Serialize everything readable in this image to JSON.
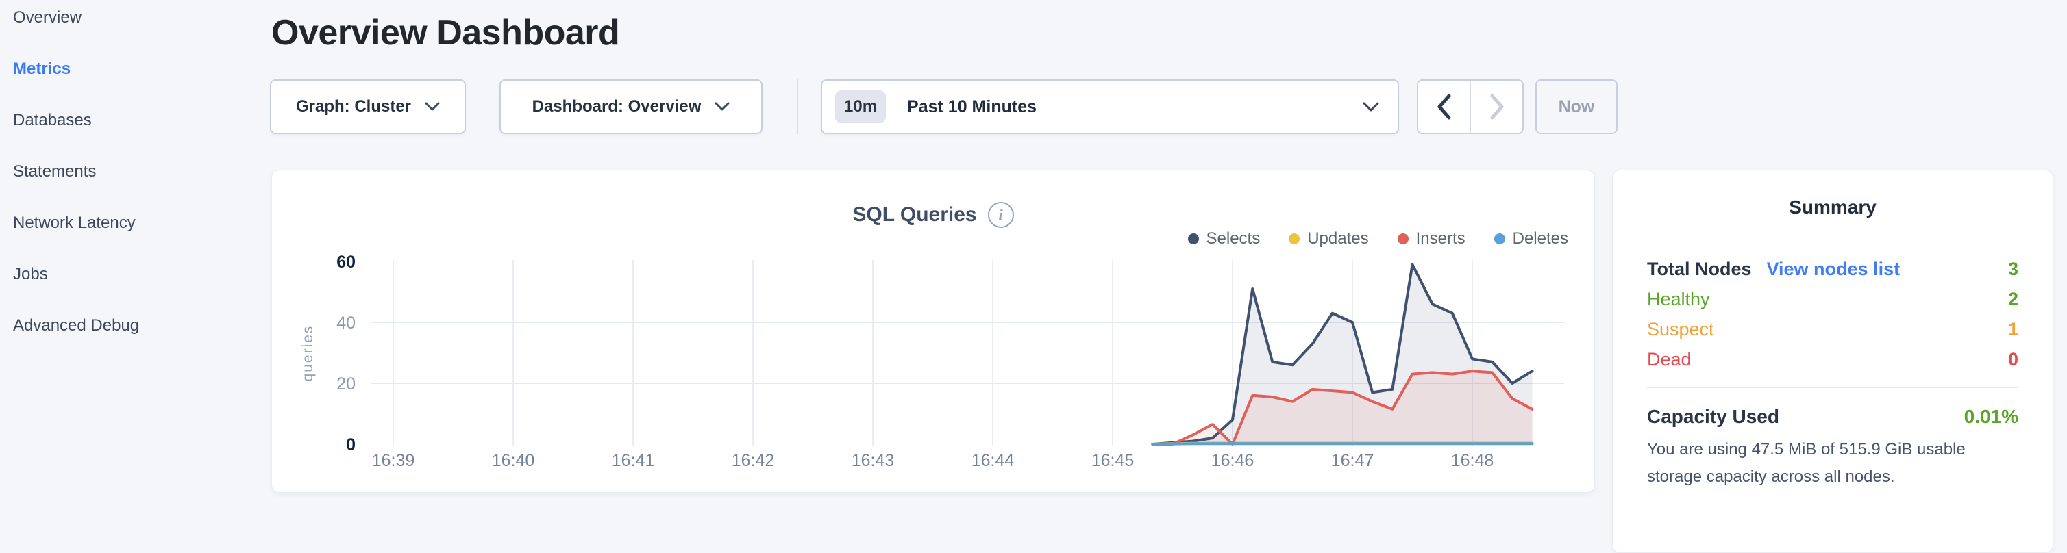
{
  "sidebar": {
    "items": [
      {
        "label": "Overview",
        "active": false
      },
      {
        "label": "Metrics",
        "active": true
      },
      {
        "label": "Databases",
        "active": false
      },
      {
        "label": "Statements",
        "active": false
      },
      {
        "label": "Network Latency",
        "active": false
      },
      {
        "label": "Jobs",
        "active": false
      },
      {
        "label": "Advanced Debug",
        "active": false
      }
    ]
  },
  "page": {
    "title": "Overview Dashboard"
  },
  "toolbar": {
    "graph_selector": {
      "label": "Graph: Cluster"
    },
    "dashboard_selector": {
      "label": "Dashboard: Overview"
    },
    "time_window": {
      "badge": "10m",
      "label": "Past 10 Minutes"
    },
    "now_button": "Now"
  },
  "chart_data": {
    "type": "area",
    "title": "SQL Queries",
    "info_icon": "i",
    "ylabel": "queries",
    "ylim": [
      0,
      60
    ],
    "y_tick_labels": [
      0,
      20,
      40,
      60
    ],
    "x_tick_labels": [
      "16:39",
      "16:40",
      "16:41",
      "16:42",
      "16:43",
      "16:44",
      "16:45",
      "16:46",
      "16:47",
      "16:48"
    ],
    "grid": true,
    "legend_position": "top-right",
    "series": [
      {
        "name": "Selects",
        "color": "#41516f",
        "fill_opacity": 0.1,
        "points": [
          [
            "16:45:20",
            0
          ],
          [
            "16:45:30",
            0.5
          ],
          [
            "16:45:40",
            1
          ],
          [
            "16:45:50",
            2
          ],
          [
            "16:46:00",
            8
          ],
          [
            "16:46:10",
            51
          ],
          [
            "16:46:20",
            27
          ],
          [
            "16:46:30",
            26
          ],
          [
            "16:46:40",
            33
          ],
          [
            "16:46:50",
            43
          ],
          [
            "16:47:00",
            40
          ],
          [
            "16:47:10",
            17
          ],
          [
            "16:47:20",
            18
          ],
          [
            "16:47:30",
            59
          ],
          [
            "16:47:40",
            46
          ],
          [
            "16:47:50",
            43
          ],
          [
            "16:48:00",
            28
          ],
          [
            "16:48:10",
            27
          ],
          [
            "16:48:20",
            20
          ],
          [
            "16:48:30",
            24
          ]
        ]
      },
      {
        "name": "Updates",
        "color": "#f0c33f",
        "fill_opacity": 0.12,
        "points": [
          [
            "16:45:20",
            0
          ],
          [
            "16:45:30",
            0.2
          ],
          [
            "16:45:40",
            0.3
          ],
          [
            "16:45:50",
            0.4
          ],
          [
            "16:46:00",
            0.4
          ],
          [
            "16:46:10",
            0.4
          ],
          [
            "16:46:20",
            0.4
          ],
          [
            "16:46:30",
            0.4
          ],
          [
            "16:46:40",
            0.4
          ],
          [
            "16:46:50",
            0.4
          ],
          [
            "16:47:00",
            0.4
          ],
          [
            "16:47:10",
            0.4
          ],
          [
            "16:47:20",
            0.4
          ],
          [
            "16:47:30",
            0.4
          ],
          [
            "16:47:40",
            0.4
          ],
          [
            "16:47:50",
            0.4
          ],
          [
            "16:48:00",
            0.4
          ],
          [
            "16:48:10",
            0.4
          ],
          [
            "16:48:20",
            0.4
          ],
          [
            "16:48:30",
            0.4
          ]
        ]
      },
      {
        "name": "Inserts",
        "color": "#e0605b",
        "fill_opacity": 0.1,
        "points": [
          [
            "16:45:20",
            0
          ],
          [
            "16:45:30",
            0
          ],
          [
            "16:45:40",
            3
          ],
          [
            "16:45:50",
            6.5
          ],
          [
            "16:46:00",
            0
          ],
          [
            "16:46:10",
            16
          ],
          [
            "16:46:20",
            15.5
          ],
          [
            "16:46:30",
            14
          ],
          [
            "16:46:40",
            18
          ],
          [
            "16:46:50",
            17.5
          ],
          [
            "16:47:00",
            17
          ],
          [
            "16:47:10",
            14
          ],
          [
            "16:47:20",
            11.5
          ],
          [
            "16:47:30",
            23
          ],
          [
            "16:47:40",
            23.5
          ],
          [
            "16:47:50",
            23
          ],
          [
            "16:48:00",
            24
          ],
          [
            "16:48:10",
            23.5
          ],
          [
            "16:48:20",
            15
          ],
          [
            "16:48:30",
            11.5
          ]
        ]
      },
      {
        "name": "Deletes",
        "color": "#57a0d8",
        "fill_opacity": 0.12,
        "points": [
          [
            "16:45:20",
            0
          ],
          [
            "16:45:30",
            0.1
          ],
          [
            "16:45:40",
            0.15
          ],
          [
            "16:45:50",
            0.15
          ],
          [
            "16:46:00",
            0.15
          ],
          [
            "16:46:10",
            0.15
          ],
          [
            "16:46:20",
            0.15
          ],
          [
            "16:46:30",
            0.15
          ],
          [
            "16:46:40",
            0.15
          ],
          [
            "16:46:50",
            0.15
          ],
          [
            "16:47:00",
            0.15
          ],
          [
            "16:47:10",
            0.15
          ],
          [
            "16:47:20",
            0.15
          ],
          [
            "16:47:30",
            0.15
          ],
          [
            "16:47:40",
            0.15
          ],
          [
            "16:47:50",
            0.15
          ],
          [
            "16:48:00",
            0.15
          ],
          [
            "16:48:10",
            0.15
          ],
          [
            "16:48:20",
            0.15
          ],
          [
            "16:48:30",
            0.15
          ]
        ]
      }
    ]
  },
  "summary": {
    "title": "Summary",
    "rows": [
      {
        "label": "Total Nodes",
        "link": "View nodes list",
        "value": "3",
        "color": "green"
      },
      {
        "label": "Healthy",
        "value": "2",
        "color": "green"
      },
      {
        "label": "Suspect",
        "value": "1",
        "color": "orange"
      },
      {
        "label": "Dead",
        "value": "0",
        "color": "red"
      }
    ],
    "capacity": {
      "label": "Capacity Used",
      "value": "0.01%",
      "color": "green"
    },
    "capacity_note": "You are using 47.5 MiB of 515.9 GiB usable storage capacity across all nodes.",
    "colors": {
      "green": "#58a425",
      "orange": "#f0a13a",
      "red": "#e5494d",
      "link": "#3f7df4"
    }
  }
}
